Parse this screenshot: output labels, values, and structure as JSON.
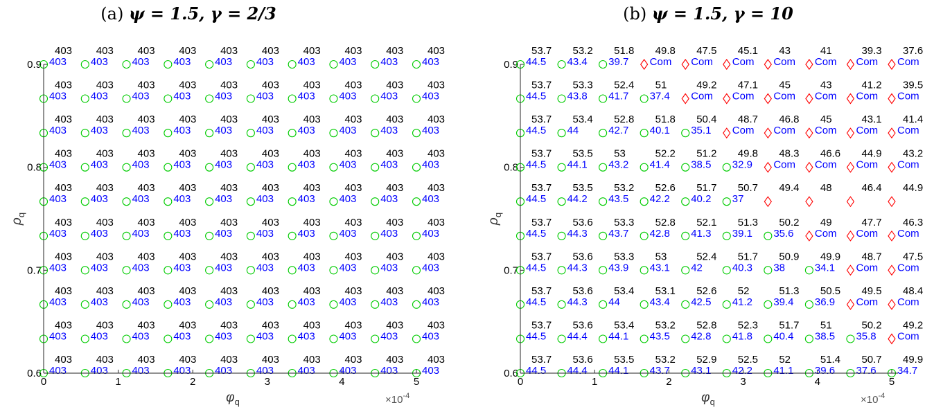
{
  "colors": {
    "top_text": "#000000",
    "bottom_text": "#0000ff",
    "circle_marker": "#00cc00",
    "diamond_marker": "#ff0000",
    "axis": "#262626"
  },
  "chart_data": [
    {
      "type": "scatter",
      "title_prefix": "(a)",
      "title_math": "ψ = 1.5, γ = 2/3",
      "xlabel": "φ",
      "xlabel_sub": "q",
      "ylabel": "ρ",
      "ylabel_sub": "q",
      "x_multiplier": "×10",
      "x_multiplier_exp": "-4",
      "xlim": [
        0,
        5
      ],
      "ylim": [
        0.6,
        0.9
      ],
      "x_ticks": [
        "0",
        "1",
        "2",
        "3",
        "4",
        "5"
      ],
      "y_ticks": [
        "0.6",
        "0.7",
        "0.8",
        "0.9"
      ],
      "x": [
        0,
        0.5556,
        1.1111,
        1.6667,
        2.2222,
        2.7778,
        3.3333,
        3.8889,
        4.4444,
        5.0
      ],
      "y": [
        0.9,
        0.8667,
        0.8333,
        0.8,
        0.7667,
        0.7333,
        0.7,
        0.6667,
        0.6333,
        0.6
      ],
      "top_values": [
        [
          "403",
          "403",
          "403",
          "403",
          "403",
          "403",
          "403",
          "403",
          "403",
          "403"
        ],
        [
          "403",
          "403",
          "403",
          "403",
          "403",
          "403",
          "403",
          "403",
          "403",
          "403"
        ],
        [
          "403",
          "403",
          "403",
          "403",
          "403",
          "403",
          "403",
          "403",
          "403",
          "403"
        ],
        [
          "403",
          "403",
          "403",
          "403",
          "403",
          "403",
          "403",
          "403",
          "403",
          "403"
        ],
        [
          "403",
          "403",
          "403",
          "403",
          "403",
          "403",
          "403",
          "403",
          "403",
          "403"
        ],
        [
          "403",
          "403",
          "403",
          "403",
          "403",
          "403",
          "403",
          "403",
          "403",
          "403"
        ],
        [
          "403",
          "403",
          "403",
          "403",
          "403",
          "403",
          "403",
          "403",
          "403",
          "403"
        ],
        [
          "403",
          "403",
          "403",
          "403",
          "403",
          "403",
          "403",
          "403",
          "403",
          "403"
        ],
        [
          "403",
          "403",
          "403",
          "403",
          "403",
          "403",
          "403",
          "403",
          "403",
          "403"
        ],
        [
          "403",
          "403",
          "403",
          "403",
          "403",
          "403",
          "403",
          "403",
          "403",
          "403"
        ]
      ],
      "bottom_values": [
        [
          "403",
          "403",
          "403",
          "403",
          "403",
          "403",
          "403",
          "403",
          "403",
          "403"
        ],
        [
          "403",
          "403",
          "403",
          "403",
          "403",
          "403",
          "403",
          "403",
          "403",
          "403"
        ],
        [
          "403",
          "403",
          "403",
          "403",
          "403",
          "403",
          "403",
          "403",
          "403",
          "403"
        ],
        [
          "403",
          "403",
          "403",
          "403",
          "403",
          "403",
          "403",
          "403",
          "403",
          "403"
        ],
        [
          "403",
          "403",
          "403",
          "403",
          "403",
          "403",
          "403",
          "403",
          "403",
          "403"
        ],
        [
          "403",
          "403",
          "403",
          "403",
          "403",
          "403",
          "403",
          "403",
          "403",
          "403"
        ],
        [
          "403",
          "403",
          "403",
          "403",
          "403",
          "403",
          "403",
          "403",
          "403",
          "403"
        ],
        [
          "403",
          "403",
          "403",
          "403",
          "403",
          "403",
          "403",
          "403",
          "403",
          "403"
        ],
        [
          "403",
          "403",
          "403",
          "403",
          "403",
          "403",
          "403",
          "403",
          "403",
          "403"
        ],
        [
          "403",
          "403",
          "403",
          "403",
          "403",
          "403",
          "403",
          "403",
          "403",
          "403"
        ]
      ],
      "markers": [
        [
          "o",
          "o",
          "o",
          "o",
          "o",
          "o",
          "o",
          "o",
          "o",
          "o"
        ],
        [
          "o",
          "o",
          "o",
          "o",
          "o",
          "o",
          "o",
          "o",
          "o",
          "o"
        ],
        [
          "o",
          "o",
          "o",
          "o",
          "o",
          "o",
          "o",
          "o",
          "o",
          "o"
        ],
        [
          "o",
          "o",
          "o",
          "o",
          "o",
          "o",
          "o",
          "o",
          "o",
          "o"
        ],
        [
          "o",
          "o",
          "o",
          "o",
          "o",
          "o",
          "o",
          "o",
          "o",
          "o"
        ],
        [
          "o",
          "o",
          "o",
          "o",
          "o",
          "o",
          "o",
          "o",
          "o",
          "o"
        ],
        [
          "o",
          "o",
          "o",
          "o",
          "o",
          "o",
          "o",
          "o",
          "o",
          "o"
        ],
        [
          "o",
          "o",
          "o",
          "o",
          "o",
          "o",
          "o",
          "o",
          "o",
          "o"
        ],
        [
          "o",
          "o",
          "o",
          "o",
          "o",
          "o",
          "o",
          "o",
          "o",
          "o"
        ],
        [
          "o",
          "o",
          "o",
          "o",
          "o",
          "o",
          "o",
          "o",
          "o",
          "o"
        ]
      ]
    },
    {
      "type": "scatter",
      "title_prefix": "(b)",
      "title_math": "ψ = 1.5, γ = 10",
      "xlabel": "φ",
      "xlabel_sub": "q",
      "ylabel": "ρ",
      "ylabel_sub": "q",
      "x_multiplier": "×10",
      "x_multiplier_exp": "-4",
      "xlim": [
        0,
        5
      ],
      "ylim": [
        0.6,
        0.9
      ],
      "x_ticks": [
        "0",
        "1",
        "2",
        "3",
        "4",
        "5"
      ],
      "y_ticks": [
        "0.6",
        "0.7",
        "0.8",
        "0.9"
      ],
      "x": [
        0,
        0.5556,
        1.1111,
        1.6667,
        2.2222,
        2.7778,
        3.3333,
        3.8889,
        4.4444,
        5.0
      ],
      "y": [
        0.9,
        0.8667,
        0.8333,
        0.8,
        0.7667,
        0.7333,
        0.7,
        0.6667,
        0.6333,
        0.6
      ],
      "top_values": [
        [
          "53.7",
          "53.2",
          "51.8",
          "49.8",
          "47.5",
          "45.1",
          "43",
          "41",
          "39.3",
          "37.6"
        ],
        [
          "53.7",
          "53.3",
          "52.4",
          "51",
          "49.2",
          "47.1",
          "45",
          "43",
          "41.2",
          "39.5"
        ],
        [
          "53.7",
          "53.4",
          "52.8",
          "51.8",
          "50.4",
          "48.7",
          "46.8",
          "45",
          "43.1",
          "41.4"
        ],
        [
          "53.7",
          "53.5",
          "53",
          "52.2",
          "51.2",
          "49.8",
          "48.3",
          "46.6",
          "44.9",
          "43.2"
        ],
        [
          "53.7",
          "53.5",
          "53.2",
          "52.6",
          "51.7",
          "50.7",
          "49.4",
          "48",
          "46.4",
          "44.9"
        ],
        [
          "53.7",
          "53.6",
          "53.3",
          "52.8",
          "52.1",
          "51.3",
          "50.2",
          "49",
          "47.7",
          "46.3"
        ],
        [
          "53.7",
          "53.6",
          "53.3",
          "53",
          "52.4",
          "51.7",
          "50.9",
          "49.9",
          "48.7",
          "47.5"
        ],
        [
          "53.7",
          "53.6",
          "53.4",
          "53.1",
          "52.6",
          "52",
          "51.3",
          "50.5",
          "49.5",
          "48.4"
        ],
        [
          "53.7",
          "53.6",
          "53.4",
          "53.2",
          "52.8",
          "52.3",
          "51.7",
          "51",
          "50.2",
          "49.2"
        ],
        [
          "53.7",
          "53.6",
          "53.5",
          "53.2",
          "52.9",
          "52.5",
          "52",
          "51.4",
          "50.7",
          "49.9"
        ]
      ],
      "bottom_values": [
        [
          "44.5",
          "43.4",
          "39.7",
          "Com",
          "Com",
          "Com",
          "Com",
          "Com",
          "Com",
          "Com"
        ],
        [
          "44.5",
          "43.8",
          "41.7",
          "37.4",
          "Com",
          "Com",
          "Com",
          "Com",
          "Com",
          "Com"
        ],
        [
          "44.5",
          "44",
          "42.7",
          "40.1",
          "35.1",
          "Com",
          "Com",
          "Com",
          "Com",
          "Com"
        ],
        [
          "44.5",
          "44.1",
          "43.2",
          "41.4",
          "38.5",
          "32.9",
          "Com",
          "Com",
          "Com",
          "Com"
        ],
        [
          "44.5",
          "44.2",
          "43.5",
          "42.2",
          "40.2",
          "37",
          "",
          "",
          "",
          ""
        ],
        [
          "44.5",
          "44.3",
          "43.7",
          "42.8",
          "41.3",
          "39.1",
          "35.6",
          "Com",
          "Com",
          "Com"
        ],
        [
          "44.5",
          "44.3",
          "43.9",
          "43.1",
          "42",
          "40.3",
          "38",
          "34.1",
          "Com",
          "Com"
        ],
        [
          "44.5",
          "44.3",
          "44",
          "43.4",
          "42.5",
          "41.2",
          "39.4",
          "36.9",
          "Com",
          "Com"
        ],
        [
          "44.5",
          "44.4",
          "44.1",
          "43.5",
          "42.8",
          "41.8",
          "40.4",
          "38.5",
          "35.8",
          "Com"
        ],
        [
          "44.5",
          "44.4",
          "44.1",
          "43.7",
          "43.1",
          "42.2",
          "41.1",
          "39.6",
          "37.6",
          "34.7"
        ]
      ],
      "markers": [
        [
          "o",
          "o",
          "o",
          "d",
          "d",
          "d",
          "d",
          "d",
          "d",
          "d"
        ],
        [
          "o",
          "o",
          "o",
          "o",
          "d",
          "d",
          "d",
          "d",
          "d",
          "d"
        ],
        [
          "o",
          "o",
          "o",
          "o",
          "o",
          "d",
          "d",
          "d",
          "d",
          "d"
        ],
        [
          "o",
          "o",
          "o",
          "o",
          "o",
          "o",
          "d",
          "d",
          "d",
          "d"
        ],
        [
          "o",
          "o",
          "o",
          "o",
          "o",
          "o",
          "d",
          "d",
          "d",
          "d"
        ],
        [
          "o",
          "o",
          "o",
          "o",
          "o",
          "o",
          "o",
          "d",
          "d",
          "d"
        ],
        [
          "o",
          "o",
          "o",
          "o",
          "o",
          "o",
          "o",
          "o",
          "d",
          "d"
        ],
        [
          "o",
          "o",
          "o",
          "o",
          "o",
          "o",
          "o",
          "o",
          "d",
          "d"
        ],
        [
          "o",
          "o",
          "o",
          "o",
          "o",
          "o",
          "o",
          "o",
          "o",
          "d"
        ],
        [
          "o",
          "o",
          "o",
          "o",
          "o",
          "o",
          "o",
          "o",
          "o",
          "o"
        ]
      ]
    }
  ]
}
